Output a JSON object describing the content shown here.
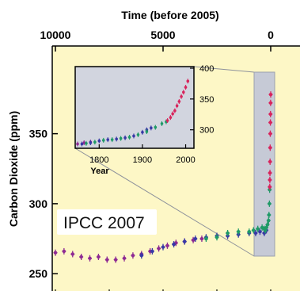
{
  "colors": {
    "page_background": "#ffffff",
    "plot_background": "#fdf7c6",
    "inset_background": "#d2d5df",
    "zoom_band": "#c6cad6",
    "axis": "#000000",
    "series_purple": "#8e2a93",
    "series_blue": "#3838a6",
    "series_green": "#1f9a67",
    "series_red": "#d8245c"
  },
  "chart_data": [
    {
      "type": "scatter",
      "title": "Time (before 2005)",
      "xlabel": "",
      "ylabel": "Carbon Dioxide (ppm)",
      "xlim": [
        10000,
        0
      ],
      "ylim": [
        245,
        390
      ],
      "x_axis_position": "top",
      "x_ticks": [
        10000,
        5000,
        0
      ],
      "x_tick_labels": [
        "10000",
        "5000",
        "0"
      ],
      "y_ticks": [
        250,
        300,
        350
      ],
      "y_tick_labels": [
        "250",
        "300",
        "350"
      ],
      "annotation": "IPCC 2007",
      "grid": false,
      "legend": "none",
      "series": [
        {
          "color": "purple",
          "x": [
            10000,
            9600,
            9200,
            8800,
            8400,
            8000,
            7600,
            7200,
            6800,
            6400,
            6000,
            5600,
            5200,
            4800,
            4400,
            4000,
            3600,
            3200
          ],
          "y": [
            265,
            266,
            264,
            262,
            261,
            262,
            260,
            260,
            261,
            263,
            264,
            266,
            268,
            270,
            272,
            273,
            274,
            275
          ]
        },
        {
          "color": "blue",
          "x": [
            6000,
            5500,
            5000,
            4500,
            4000,
            3500,
            3000,
            2500,
            2000,
            1500,
            1000,
            700,
            500,
            300,
            200
          ],
          "y": [
            263,
            266,
            269,
            271,
            273,
            275,
            276,
            277,
            277,
            278,
            279,
            279,
            280,
            279,
            281
          ]
        },
        {
          "color": "green",
          "x": [
            3000,
            2500,
            2000,
            1500,
            1000,
            800,
            600,
            400,
            300,
            250,
            200,
            150,
            100,
            80,
            60,
            50
          ],
          "y": [
            275,
            276,
            279,
            280,
            280,
            281,
            282,
            283,
            282,
            281,
            283,
            285,
            288,
            292,
            300,
            310
          ]
        },
        {
          "color": "red",
          "x": [
            45,
            40,
            35,
            30,
            25,
            20,
            15,
            10,
            5,
            0
          ],
          "y": [
            312,
            317,
            322,
            330,
            340,
            350,
            358,
            364,
            372,
            378
          ]
        }
      ]
    },
    {
      "type": "scatter",
      "title": "",
      "xlabel": "Year",
      "ylabel": "",
      "xlim": [
        1750,
        2010
      ],
      "ylim": [
        270,
        400
      ],
      "x_ticks": [
        1800,
        1900,
        2000
      ],
      "x_tick_labels": [
        "1800",
        "1900",
        "2000"
      ],
      "y_ticks": [
        300,
        350,
        400
      ],
      "y_tick_labels": [
        "300",
        "350",
        "400"
      ],
      "y_axis_position": "right",
      "grid": false,
      "legend": "none",
      "series": [
        {
          "color": "purple",
          "x": [
            1750,
            1765,
            1780
          ],
          "y": [
            277,
            279,
            280
          ]
        },
        {
          "color": "blue",
          "x": [
            1760,
            1780,
            1800,
            1820,
            1840,
            1860,
            1880,
            1900,
            1910,
            1920
          ],
          "y": [
            277,
            279,
            282,
            284,
            285,
            287,
            290,
            296,
            300,
            303
          ]
        },
        {
          "color": "green",
          "x": [
            1770,
            1790,
            1810,
            1830,
            1850,
            1870,
            1890,
            1910,
            1930,
            1945,
            1955
          ],
          "y": [
            278,
            280,
            283,
            284,
            286,
            288,
            292,
            297,
            304,
            310,
            313
          ]
        },
        {
          "color": "red",
          "x": [
            1958,
            1965,
            1970,
            1975,
            1980,
            1985,
            1990,
            1995,
            2000,
            2005
          ],
          "y": [
            315,
            320,
            326,
            331,
            339,
            346,
            354,
            361,
            369,
            379
          ]
        }
      ]
    }
  ]
}
